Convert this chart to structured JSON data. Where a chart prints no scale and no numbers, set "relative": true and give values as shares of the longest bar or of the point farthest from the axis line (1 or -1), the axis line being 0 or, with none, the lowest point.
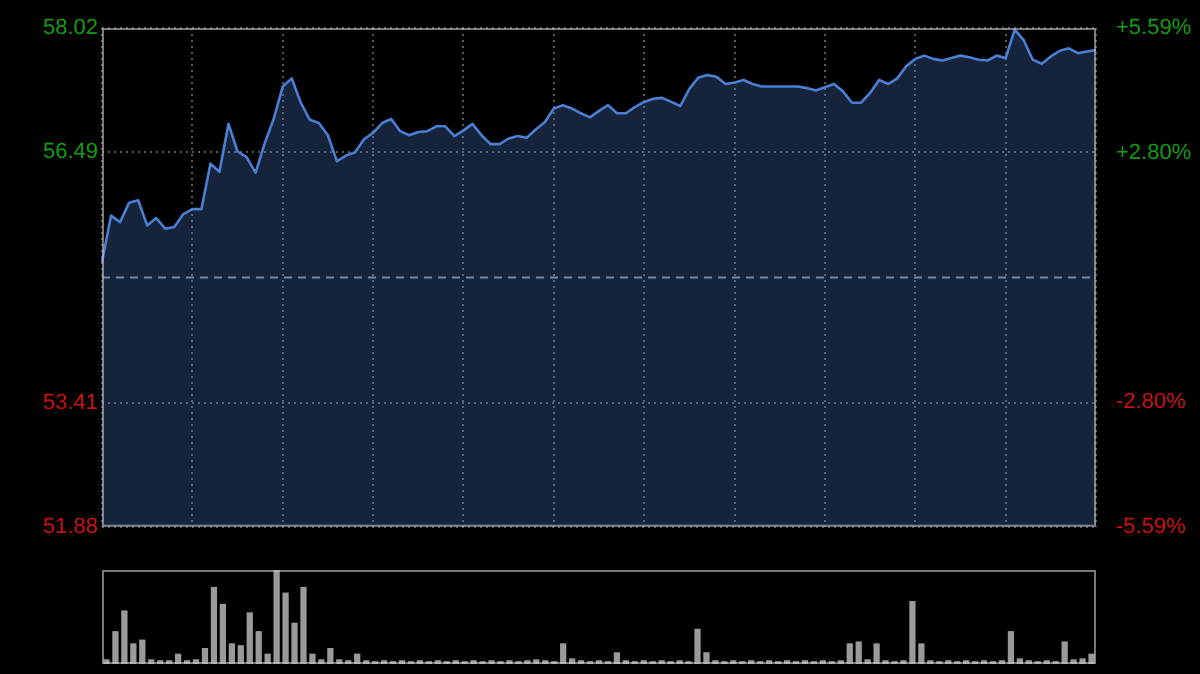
{
  "chart_data": [
    {
      "type": "area",
      "categories": [
        null,
        null,
        null,
        null,
        null,
        null,
        null,
        null,
        null,
        null,
        null,
        null,
        null,
        null,
        null,
        null,
        null,
        null,
        null,
        null,
        null,
        null,
        null,
        null,
        null,
        null,
        null,
        null,
        null,
        null,
        null,
        null,
        null,
        null,
        null,
        null,
        null,
        null,
        null,
        null,
        null,
        null,
        null,
        null,
        null,
        null,
        null,
        null,
        null,
        null,
        null,
        null,
        null,
        null,
        null,
        null,
        null,
        null,
        null,
        null,
        null,
        null,
        null,
        null,
        null,
        null,
        null,
        null,
        null,
        null,
        null,
        null,
        null,
        null,
        null,
        null,
        null,
        null,
        null,
        null,
        null,
        null,
        null,
        null,
        null,
        null,
        null,
        null,
        null,
        null,
        null,
        null,
        null,
        null,
        null,
        null,
        null,
        null,
        null,
        null,
        null,
        null,
        null,
        null,
        null,
        null,
        null,
        null,
        null,
        null,
        null
      ],
      "series": [
        {
          "color": "#4a7fd4",
          "values": [
            55.14,
            55.71,
            55.63,
            55.87,
            55.9,
            55.59,
            55.68,
            55.55,
            55.57,
            55.73,
            55.79,
            55.79,
            56.35,
            56.25,
            56.84,
            56.5,
            56.43,
            56.24,
            56.6,
            56.9,
            57.3,
            57.4,
            57.1,
            56.89,
            56.85,
            56.7,
            56.38,
            56.45,
            56.49,
            56.65,
            56.73,
            56.85,
            56.9,
            56.75,
            56.7,
            56.74,
            56.75,
            56.81,
            56.81,
            56.69,
            56.76,
            56.84,
            56.7,
            56.59,
            56.59,
            56.66,
            56.69,
            56.67,
            56.77,
            56.86,
            57.03,
            57.07,
            57.03,
            56.97,
            56.92,
            57.0,
            57.07,
            56.97,
            56.97,
            57.05,
            57.11,
            57.15,
            57.16,
            57.11,
            57.06,
            57.27,
            57.41,
            57.44,
            57.42,
            57.33,
            57.35,
            57.38,
            57.33,
            57.3,
            57.3,
            57.3,
            57.3,
            57.3,
            57.28,
            57.25,
            57.29,
            57.33,
            57.24,
            57.1,
            57.1,
            57.22,
            57.38,
            57.33,
            57.4,
            57.55,
            57.64,
            57.68,
            57.64,
            57.62,
            57.65,
            57.68,
            57.66,
            57.63,
            57.62,
            57.68,
            57.65,
            58.0,
            57.87,
            57.63,
            57.58,
            57.67,
            57.74,
            57.77,
            57.71,
            57.73,
            57.75
          ]
        }
      ],
      "ylim": [
        51.88,
        58.02
      ],
      "yticks": [
        51.88,
        53.41,
        56.49,
        58.02
      ],
      "y2lim": [
        -5.59,
        5.59
      ],
      "y2ticks": [
        {
          "value": -5.59,
          "label": "-5.59%"
        },
        {
          "value": -2.8,
          "label": "-2.80%"
        },
        {
          "value": 2.8,
          "label": "+2.80%"
        },
        {
          "value": 5.59,
          "label": "+5.59%"
        }
      ],
      "ref_lines": [
        {
          "axis": "y",
          "value": 54.95,
          "color": "#7f8fa0",
          "line_style": "dashed"
        }
      ],
      "grid": true,
      "legend": false,
      "marker": "none"
    },
    {
      "type": "bar",
      "relative": true,
      "categories": [
        null,
        null,
        null,
        null,
        null,
        null,
        null,
        null,
        null,
        null,
        null,
        null,
        null,
        null,
        null,
        null,
        null,
        null,
        null,
        null,
        null,
        null,
        null,
        null,
        null,
        null,
        null,
        null,
        null,
        null,
        null,
        null,
        null,
        null,
        null,
        null,
        null,
        null,
        null,
        null,
        null,
        null,
        null,
        null,
        null,
        null,
        null,
        null,
        null,
        null,
        null,
        null,
        null,
        null,
        null,
        null,
        null,
        null,
        null,
        null,
        null,
        null,
        null,
        null,
        null,
        null,
        null,
        null,
        null,
        null,
        null,
        null,
        null,
        null,
        null,
        null,
        null,
        null,
        null,
        null,
        null,
        null,
        null,
        null,
        null,
        null,
        null,
        null,
        null,
        null,
        null,
        null,
        null,
        null,
        null,
        null,
        null,
        null,
        null,
        null,
        null,
        null,
        null,
        null,
        null,
        null,
        null,
        null,
        null,
        null,
        null
      ],
      "values": [
        0.05,
        0.35,
        0.57,
        0.22,
        0.26,
        0.05,
        0.04,
        0.04,
        0.11,
        0.04,
        0.05,
        0.17,
        0.82,
        0.64,
        0.22,
        0.2,
        0.55,
        0.35,
        0.11,
        1.0,
        0.76,
        0.44,
        0.82,
        0.11,
        0.05,
        0.17,
        0.05,
        0.04,
        0.11,
        0.04,
        0.03,
        0.04,
        0.03,
        0.04,
        0.03,
        0.04,
        0.03,
        0.04,
        0.03,
        0.04,
        0.03,
        0.04,
        0.03,
        0.04,
        0.03,
        0.04,
        0.03,
        0.04,
        0.05,
        0.04,
        0.03,
        0.22,
        0.06,
        0.04,
        0.03,
        0.04,
        0.03,
        0.125,
        0.04,
        0.03,
        0.04,
        0.03,
        0.04,
        0.03,
        0.04,
        0.03,
        0.375,
        0.125,
        0.04,
        0.03,
        0.04,
        0.03,
        0.04,
        0.03,
        0.04,
        0.03,
        0.04,
        0.03,
        0.04,
        0.03,
        0.04,
        0.03,
        0.04,
        0.22,
        0.24,
        0.05,
        0.22,
        0.04,
        0.03,
        0.04,
        0.67,
        0.22,
        0.04,
        0.03,
        0.04,
        0.03,
        0.04,
        0.03,
        0.04,
        0.03,
        0.04,
        0.35,
        0.06,
        0.04,
        0.03,
        0.04,
        0.03,
        0.24,
        0.05,
        0.06,
        0.11
      ],
      "color": "#9a9a9a",
      "grid": false,
      "legend": false
    }
  ]
}
